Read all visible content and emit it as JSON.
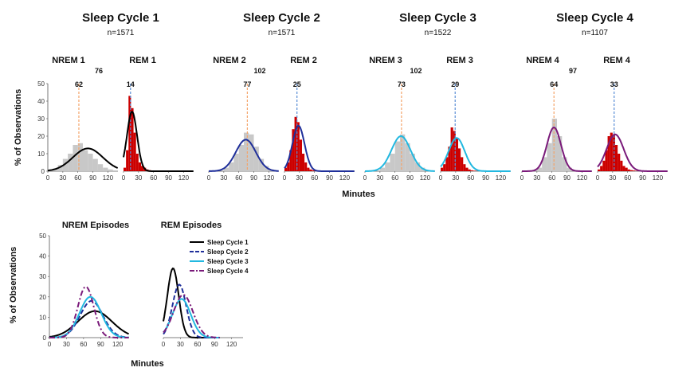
{
  "figure": {
    "top_xlabel": "Minutes",
    "top_ylabel": "% of Observations",
    "bottom_xlabel": "Minutes",
    "bottom_ylabel": "% of Observations"
  },
  "colors": {
    "nrem_bar": "#c8c8c8",
    "rem_bar": "#cc0000",
    "nrem_median_line": "#f4a46a",
    "rem_median_line": "#5b8fd6",
    "cycle1": "#000000",
    "cycle2": "#1f2f9a",
    "cycle3": "#22b8e0",
    "cycle4": "#7a1a7a"
  },
  "chart_data": [
    {
      "type": "bar",
      "title": "Sleep Cycle 1",
      "subtitle": "n=1571",
      "x_ticks": [
        0,
        30,
        60,
        90,
        120
      ],
      "y_ticks": [
        0,
        10,
        20,
        30,
        40,
        50
      ],
      "ylim": [
        0,
        50
      ],
      "xlim": [
        0,
        140
      ],
      "cycle_length": "76",
      "curve_color": "cycle1",
      "nrem": {
        "label": "NREM 1",
        "median": 62,
        "bin_width": 10,
        "bins": [
          0,
          10,
          20,
          30,
          40,
          50,
          60,
          70,
          80,
          90,
          100,
          110,
          120,
          130
        ],
        "values": [
          0.5,
          1.5,
          3.5,
          7,
          10,
          15,
          16,
          12,
          10,
          7,
          4,
          2,
          1,
          0.5
        ],
        "fit_mean": 80,
        "fit_sd": 30,
        "fit_peak": 13
      },
      "rem": {
        "label": "REM 1",
        "median": 14,
        "bin_width": 5,
        "bins": [
          0,
          5,
          10,
          15,
          20,
          25,
          30,
          35,
          40,
          45,
          50,
          55,
          60
        ],
        "values": [
          2,
          12,
          43,
          36,
          22,
          10,
          5,
          3,
          2,
          1,
          0.6,
          0.4,
          0.2
        ],
        "fit_mean": 17,
        "fit_sd": 10,
        "fit_peak": 34
      }
    },
    {
      "type": "bar",
      "title": "Sleep Cycle 2",
      "subtitle": "n=1571",
      "x_ticks": [
        0,
        30,
        60,
        90,
        120
      ],
      "y_ticks": [
        0,
        10,
        20,
        30,
        40,
        50
      ],
      "ylim": [
        0,
        50
      ],
      "xlim": [
        0,
        140
      ],
      "cycle_length": "102",
      "curve_color": "cycle2",
      "nrem": {
        "label": "NREM 2",
        "median": 77,
        "bin_width": 10,
        "bins": [
          30,
          40,
          50,
          60,
          70,
          80,
          90,
          100,
          110,
          120
        ],
        "values": [
          2,
          5,
          10,
          15,
          22,
          21,
          14,
          7,
          3,
          1
        ],
        "fit_mean": 74,
        "fit_sd": 20,
        "fit_peak": 18
      },
      "rem": {
        "label": "REM 2",
        "median": 25,
        "bin_width": 5,
        "bins": [
          0,
          5,
          10,
          15,
          20,
          25,
          30,
          35,
          40,
          45,
          50,
          55,
          60
        ],
        "values": [
          2,
          5,
          12,
          24,
          31,
          28,
          18,
          10,
          5,
          2,
          1,
          0.5,
          0.3
        ],
        "fit_mean": 28,
        "fit_sd": 12,
        "fit_peak": 26
      }
    },
    {
      "type": "bar",
      "title": "Sleep Cycle 3",
      "subtitle": "n=1522",
      "x_ticks": [
        0,
        30,
        60,
        90,
        120
      ],
      "y_ticks": [
        0,
        10,
        20,
        30,
        40,
        50
      ],
      "ylim": [
        0,
        50
      ],
      "xlim": [
        0,
        140
      ],
      "cycle_length": "102",
      "curve_color": "cycle3",
      "nrem": {
        "label": "NREM 3",
        "median": 73,
        "bin_width": 10,
        "bins": [
          30,
          40,
          50,
          60,
          70,
          80,
          90,
          100,
          110
        ],
        "values": [
          2,
          5,
          10,
          17,
          21,
          16,
          10,
          5,
          2
        ],
        "fit_mean": 72,
        "fit_sd": 19,
        "fit_peak": 20
      },
      "rem": {
        "label": "REM 3",
        "median": 29,
        "bin_width": 5,
        "bins": [
          0,
          5,
          10,
          15,
          20,
          25,
          30,
          35,
          40,
          45,
          50,
          55,
          60,
          65,
          70
        ],
        "values": [
          2,
          4,
          8,
          14,
          25,
          23,
          19,
          13,
          8,
          4,
          2,
          1,
          0.5,
          0.3,
          0.2
        ],
        "fit_mean": 32,
        "fit_sd": 16,
        "fit_peak": 19
      }
    },
    {
      "type": "bar",
      "title": "Sleep Cycle 4",
      "subtitle": "n=1107",
      "x_ticks": [
        0,
        30,
        60,
        90,
        120
      ],
      "y_ticks": [
        0,
        10,
        20,
        30,
        40,
        50
      ],
      "ylim": [
        0,
        50
      ],
      "xlim": [
        0,
        140
      ],
      "cycle_length": "97",
      "curve_color": "cycle4",
      "nrem": {
        "label": "NREM 4",
        "median": 64,
        "bin_width": 10,
        "bins": [
          30,
          40,
          50,
          60,
          70,
          80,
          90
        ],
        "values": [
          2,
          8,
          16,
          30,
          20,
          8,
          2
        ],
        "fit_mean": 64,
        "fit_sd": 14,
        "fit_peak": 25
      },
      "rem": {
        "label": "REM 4",
        "median": 33,
        "bin_width": 5,
        "bins": [
          0,
          5,
          10,
          15,
          20,
          25,
          30,
          35,
          40,
          45,
          50,
          55,
          60,
          65,
          70,
          75
        ],
        "values": [
          1,
          3,
          6,
          12,
          20,
          22,
          21,
          15,
          10,
          6,
          3,
          2,
          1,
          0.6,
          0.4,
          0.2
        ],
        "fit_mean": 35,
        "fit_sd": 17,
        "fit_peak": 21
      }
    },
    {
      "type": "line",
      "title": "NREM Episodes",
      "xlabel": "Minutes",
      "ylabel": "% of Observations",
      "x_ticks": [
        0,
        30,
        60,
        90,
        120
      ],
      "y_ticks": [
        0,
        10,
        20,
        30,
        40,
        50
      ],
      "ylim": [
        0,
        50
      ],
      "xlim": [
        0,
        140
      ],
      "series": [
        {
          "name": "Sleep Cycle 1",
          "color": "cycle1",
          "dash": "solid",
          "mean": 80,
          "sd": 30,
          "peak": 13
        },
        {
          "name": "Sleep Cycle 2",
          "color": "cycle2",
          "dash": "dash",
          "mean": 74,
          "sd": 20,
          "peak": 18
        },
        {
          "name": "Sleep Cycle 3",
          "color": "cycle3",
          "dash": "solid",
          "mean": 72,
          "sd": 19,
          "peak": 20
        },
        {
          "name": "Sleep Cycle 4",
          "color": "cycle4",
          "dash": "dashdot",
          "mean": 64,
          "sd": 14,
          "peak": 25
        }
      ]
    },
    {
      "type": "line",
      "title": "REM Episodes",
      "x_ticks": [
        0,
        30,
        60,
        90,
        120
      ],
      "ylim": [
        0,
        50
      ],
      "xlim": [
        0,
        140
      ],
      "series": [
        {
          "name": "Sleep Cycle 1",
          "color": "cycle1",
          "dash": "solid",
          "mean": 17,
          "sd": 10,
          "peak": 34
        },
        {
          "name": "Sleep Cycle 2",
          "color": "cycle2",
          "dash": "dash",
          "mean": 28,
          "sd": 12,
          "peak": 26
        },
        {
          "name": "Sleep Cycle 3",
          "color": "cycle3",
          "dash": "solid",
          "mean": 32,
          "sd": 16,
          "peak": 19
        },
        {
          "name": "Sleep Cycle 4",
          "color": "cycle4",
          "dash": "dashdot",
          "mean": 35,
          "sd": 17,
          "peak": 21
        }
      ],
      "legend": [
        "Sleep Cycle 1",
        "Sleep Cycle 2",
        "Sleep Cycle 3",
        "Sleep Cycle 4"
      ]
    }
  ]
}
